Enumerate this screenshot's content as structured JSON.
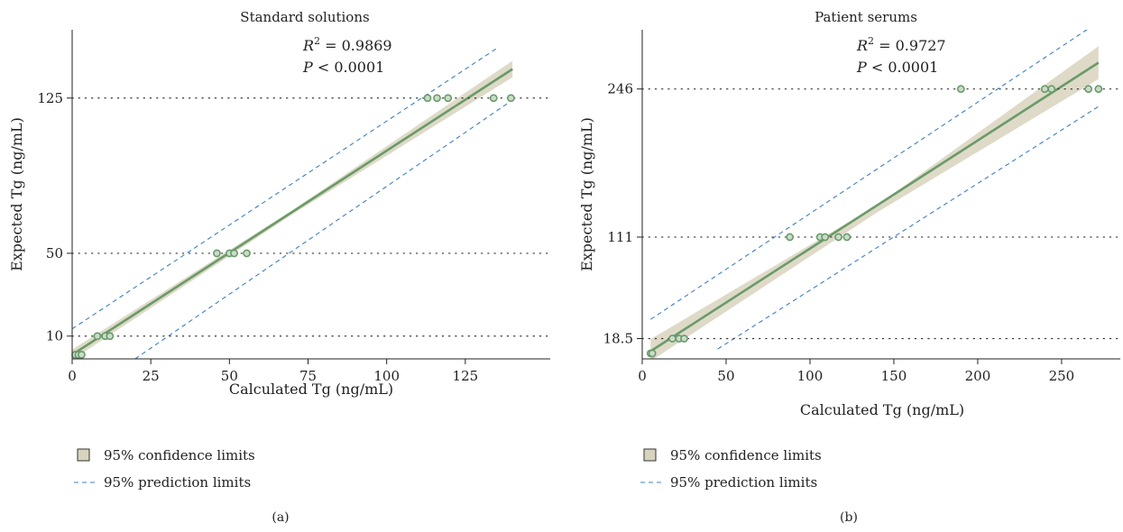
{
  "colors": {
    "line": "#6a9a6a",
    "band": "#d8d3bd",
    "prediction": "#3f7fc2",
    "point_stroke": "#6a9a6a",
    "point_fill": "#c9dcc9",
    "axis": "#222222",
    "grid": "#333333"
  },
  "chart_data": [
    {
      "panel_label": "(a)",
      "type": "scatter",
      "title": "Standard solutions",
      "xlabel": "Calculated Tg (ng/mL)",
      "ylabel": "Expected Tg (ng/mL)",
      "x_ticks": [
        "0",
        "25",
        "50",
        "75",
        "100",
        "125"
      ],
      "x_tick_values": [
        0,
        25,
        50,
        75,
        100,
        125
      ],
      "y_ticks": [
        "10",
        "50",
        "125"
      ],
      "y_tick_values": [
        10,
        50,
        125
      ],
      "xlim": [
        0,
        152
      ],
      "ylim": [
        -1,
        158
      ],
      "grid": "horizontal dotted at y ticks",
      "stats": {
        "r2_label": "R",
        "r2_sup": "2",
        "r2_value": " = 0.9869",
        "p_label": "P",
        "p_value": " < 0.0001"
      },
      "fit": {
        "x": [
          0,
          140
        ],
        "y": [
          1.0,
          139.0
        ]
      },
      "confidence_band": {
        "x": [
          0,
          70,
          140
        ],
        "upper": [
          3.5,
          70.8,
          143.0
        ],
        "lower": [
          -1.5,
          68.8,
          135.0
        ]
      },
      "prediction_limits": {
        "upper": {
          "x": [
            0,
            135
          ],
          "y": [
            13.5,
            149.0
          ]
        },
        "lower": {
          "x": [
            20,
            139
          ],
          "y": [
            -1.0,
            123.0
          ]
        }
      },
      "points": [
        {
          "x": 1,
          "y": 1
        },
        {
          "x": 2,
          "y": 1
        },
        {
          "x": 3,
          "y": 1
        },
        {
          "x": 8,
          "y": 10
        },
        {
          "x": 10.5,
          "y": 10
        },
        {
          "x": 12,
          "y": 10
        },
        {
          "x": 46,
          "y": 50
        },
        {
          "x": 50,
          "y": 50
        },
        {
          "x": 51.5,
          "y": 50
        },
        {
          "x": 55.5,
          "y": 50
        },
        {
          "x": 113,
          "y": 125
        },
        {
          "x": 116,
          "y": 125
        },
        {
          "x": 119.5,
          "y": 125
        },
        {
          "x": 134,
          "y": 125
        },
        {
          "x": 139.5,
          "y": 125
        }
      ],
      "legend": [
        {
          "kind": "band",
          "label": "95% confidence limits"
        },
        {
          "kind": "dashed",
          "label": "95% prediction limits"
        }
      ]
    },
    {
      "panel_label": "(b)",
      "type": "scatter",
      "title": "Patient serums",
      "xlabel": "Calculated Tg (ng/mL)",
      "ylabel": "Expected Tg (ng/mL)",
      "x_ticks": [
        "0",
        "50",
        "100",
        "150",
        "200",
        "250"
      ],
      "x_tick_values": [
        0,
        50,
        100,
        150,
        200,
        250
      ],
      "y_ticks": [
        "18.5",
        "111",
        "246"
      ],
      "y_tick_values": [
        18.5,
        111,
        246
      ],
      "xlim": [
        0,
        285
      ],
      "ylim": [
        0,
        300
      ],
      "grid": "horizontal dotted at y ticks",
      "stats": {
        "r2_label": "R",
        "r2_sup": "2",
        "r2_value": " = 0.9727",
        "p_label": "P",
        "p_value": " < 0.0001"
      },
      "fit": {
        "x": [
          5,
          272
        ],
        "y": [
          7.0,
          270.0
        ]
      },
      "confidence_band": {
        "x": [
          5,
          140,
          272
        ],
        "upper": [
          18.0,
          140.0,
          285.0
        ],
        "lower": [
          -2.0,
          133.5,
          255.0
        ]
      },
      "prediction_limits": {
        "upper": {
          "x": [
            5,
            268
          ],
          "y": [
            36.0,
            303.0
          ]
        },
        "lower": {
          "x": [
            45,
            272
          ],
          "y": [
            9.0,
            230.0
          ]
        }
      },
      "points": [
        {
          "x": 5,
          "y": 5
        },
        {
          "x": 6,
          "y": 5
        },
        {
          "x": 18,
          "y": 18.5
        },
        {
          "x": 22,
          "y": 18.5
        },
        {
          "x": 25,
          "y": 18.5
        },
        {
          "x": 88,
          "y": 111
        },
        {
          "x": 106,
          "y": 111
        },
        {
          "x": 109,
          "y": 111
        },
        {
          "x": 117,
          "y": 111
        },
        {
          "x": 122,
          "y": 111
        },
        {
          "x": 190,
          "y": 246
        },
        {
          "x": 240,
          "y": 246
        },
        {
          "x": 244,
          "y": 246
        },
        {
          "x": 266,
          "y": 246
        },
        {
          "x": 272,
          "y": 246
        }
      ],
      "legend": [
        {
          "kind": "band",
          "label": "95% confidence limits"
        },
        {
          "kind": "dashed",
          "label": "95% prediction limits"
        }
      ]
    }
  ]
}
